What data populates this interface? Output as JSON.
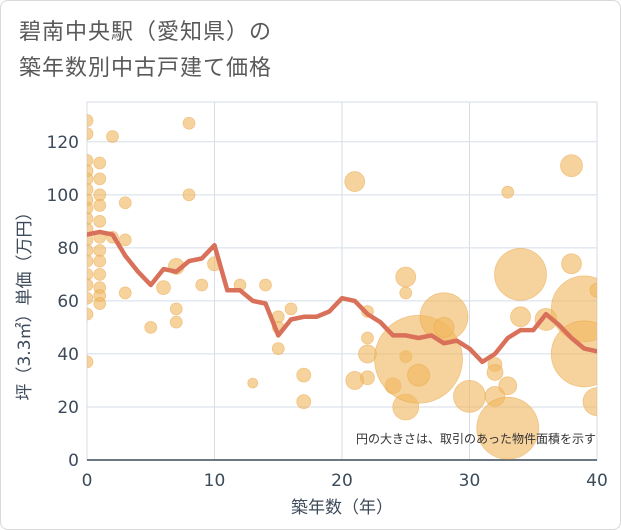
{
  "title": {
    "line1": "碧南中央駅（愛知県）の",
    "line2": "築年数別中古戸建て価格"
  },
  "note": "円の大きさは、取引のあった物件面積を示す",
  "colors": {
    "bubble": "#f0b860",
    "bubble_stroke": "#e8a444",
    "line": "#d9705a",
    "grid": "#d5dde6",
    "axis": "#3c4a5a"
  },
  "chart_data": {
    "type": "scatter",
    "xlabel": "築年数（年）",
    "ylabel": "坪（3.3㎡）単価（万円）",
    "xlim": [
      0,
      40
    ],
    "ylim": [
      0,
      135
    ],
    "xticks": [
      0,
      10,
      20,
      30,
      40
    ],
    "yticks": [
      0,
      20,
      40,
      60,
      80,
      100,
      120
    ],
    "grid": true,
    "series": [
      {
        "kind": "bubble",
        "points": [
          {
            "x": 0,
            "y": 128,
            "s": 6
          },
          {
            "x": 0,
            "y": 123,
            "s": 6
          },
          {
            "x": 0,
            "y": 113,
            "s": 6
          },
          {
            "x": 0,
            "y": 109,
            "s": 6
          },
          {
            "x": 0,
            "y": 106,
            "s": 6
          },
          {
            "x": 0,
            "y": 102,
            "s": 6
          },
          {
            "x": 0,
            "y": 98,
            "s": 6
          },
          {
            "x": 0,
            "y": 95,
            "s": 6
          },
          {
            "x": 0,
            "y": 91,
            "s": 6
          },
          {
            "x": 0,
            "y": 87,
            "s": 6
          },
          {
            "x": 0,
            "y": 83,
            "s": 6
          },
          {
            "x": 0,
            "y": 79,
            "s": 6
          },
          {
            "x": 0,
            "y": 75,
            "s": 6
          },
          {
            "x": 0,
            "y": 70,
            "s": 6
          },
          {
            "x": 0,
            "y": 66,
            "s": 6
          },
          {
            "x": 0,
            "y": 61,
            "s": 6
          },
          {
            "x": 0,
            "y": 55,
            "s": 6
          },
          {
            "x": 0,
            "y": 37,
            "s": 6
          },
          {
            "x": 1,
            "y": 112,
            "s": 6
          },
          {
            "x": 1,
            "y": 106,
            "s": 6
          },
          {
            "x": 1,
            "y": 100,
            "s": 6
          },
          {
            "x": 1,
            "y": 96,
            "s": 6
          },
          {
            "x": 1,
            "y": 90,
            "s": 6
          },
          {
            "x": 1,
            "y": 84,
            "s": 6
          },
          {
            "x": 1,
            "y": 79,
            "s": 6
          },
          {
            "x": 1,
            "y": 75,
            "s": 6
          },
          {
            "x": 1,
            "y": 70,
            "s": 6
          },
          {
            "x": 1,
            "y": 65,
            "s": 6
          },
          {
            "x": 1,
            "y": 62,
            "s": 6
          },
          {
            "x": 1,
            "y": 59,
            "s": 6
          },
          {
            "x": 2,
            "y": 122,
            "s": 6
          },
          {
            "x": 2,
            "y": 84,
            "s": 6
          },
          {
            "x": 3,
            "y": 97,
            "s": 6
          },
          {
            "x": 3,
            "y": 83,
            "s": 6
          },
          {
            "x": 3,
            "y": 63,
            "s": 6
          },
          {
            "x": 5,
            "y": 50,
            "s": 6
          },
          {
            "x": 6,
            "y": 65,
            "s": 7
          },
          {
            "x": 7,
            "y": 73,
            "s": 8
          },
          {
            "x": 7,
            "y": 57,
            "s": 6
          },
          {
            "x": 7,
            "y": 52,
            "s": 6
          },
          {
            "x": 8,
            "y": 127,
            "s": 6
          },
          {
            "x": 8,
            "y": 100,
            "s": 6
          },
          {
            "x": 9,
            "y": 66,
            "s": 6
          },
          {
            "x": 10,
            "y": 74,
            "s": 7
          },
          {
            "x": 12,
            "y": 66,
            "s": 6
          },
          {
            "x": 13,
            "y": 29,
            "s": 5
          },
          {
            "x": 14,
            "y": 66,
            "s": 6
          },
          {
            "x": 15,
            "y": 54,
            "s": 6
          },
          {
            "x": 15,
            "y": 50,
            "s": 6
          },
          {
            "x": 15,
            "y": 42,
            "s": 6
          },
          {
            "x": 16,
            "y": 57,
            "s": 6
          },
          {
            "x": 17,
            "y": 32,
            "s": 7
          },
          {
            "x": 17,
            "y": 22,
            "s": 7
          },
          {
            "x": 21,
            "y": 105,
            "s": 10
          },
          {
            "x": 21,
            "y": 30,
            "s": 9
          },
          {
            "x": 22,
            "y": 56,
            "s": 6
          },
          {
            "x": 22,
            "y": 46,
            "s": 6
          },
          {
            "x": 22,
            "y": 40,
            "s": 9
          },
          {
            "x": 22,
            "y": 31,
            "s": 7
          },
          {
            "x": 24,
            "y": 28,
            "s": 8
          },
          {
            "x": 25,
            "y": 69,
            "s": 10
          },
          {
            "x": 25,
            "y": 63,
            "s": 6
          },
          {
            "x": 25,
            "y": 39,
            "s": 6
          },
          {
            "x": 25,
            "y": 20,
            "s": 13
          },
          {
            "x": 26,
            "y": 38,
            "s": 44
          },
          {
            "x": 26,
            "y": 32,
            "s": 11
          },
          {
            "x": 28,
            "y": 54,
            "s": 24
          },
          {
            "x": 28,
            "y": 50,
            "s": 10
          },
          {
            "x": 30,
            "y": 24,
            "s": 16
          },
          {
            "x": 32,
            "y": 36,
            "s": 7
          },
          {
            "x": 32,
            "y": 33,
            "s": 8
          },
          {
            "x": 32,
            "y": 24,
            "s": 10
          },
          {
            "x": 33,
            "y": 101,
            "s": 6
          },
          {
            "x": 33,
            "y": 28,
            "s": 9
          },
          {
            "x": 33,
            "y": 12,
            "s": 31
          },
          {
            "x": 34,
            "y": 70,
            "s": 26
          },
          {
            "x": 34,
            "y": 54,
            "s": 10
          },
          {
            "x": 36,
            "y": 53,
            "s": 11
          },
          {
            "x": 38,
            "y": 111,
            "s": 11
          },
          {
            "x": 38,
            "y": 74,
            "s": 10
          },
          {
            "x": 39,
            "y": 57,
            "s": 33
          },
          {
            "x": 39,
            "y": 40,
            "s": 33
          },
          {
            "x": 40,
            "y": 64,
            "s": 7
          },
          {
            "x": 40,
            "y": 22,
            "s": 14
          }
        ]
      },
      {
        "kind": "line",
        "x": [
          0,
          1,
          2,
          3,
          4,
          5,
          6,
          7,
          8,
          9,
          10,
          11,
          12,
          13,
          14,
          15,
          16,
          17,
          18,
          19,
          20,
          21,
          22,
          23,
          24,
          25,
          26,
          27,
          28,
          29,
          30,
          31,
          32,
          33,
          34,
          35,
          36,
          37,
          38,
          39,
          40
        ],
        "y": [
          85,
          86,
          85,
          77,
          71,
          66,
          72,
          71,
          75,
          76,
          81,
          64,
          64,
          60,
          59,
          47,
          53,
          54,
          54,
          56,
          61,
          60,
          55,
          52,
          47,
          47,
          46,
          47,
          44,
          45,
          42,
          37,
          40,
          46,
          49,
          49,
          55,
          51,
          46,
          42,
          41
        ]
      }
    ]
  }
}
